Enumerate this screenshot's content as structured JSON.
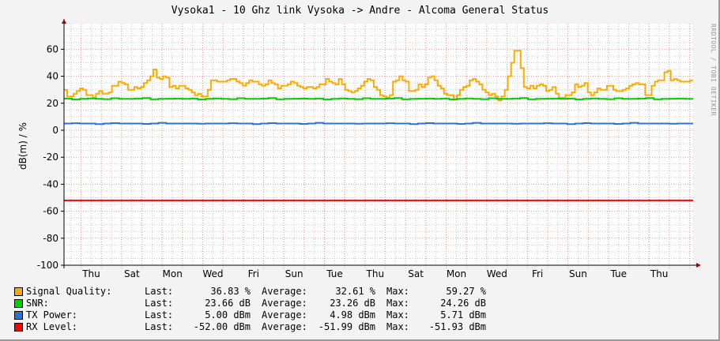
{
  "title": "Vysoka1 - 10 Ghz link Vysoka -> Andre - Alcoma General Status",
  "watermark": "RRDTOOL / TOBI OETIKER",
  "y_axis_label": "dB(m)  /  %",
  "chart_data": {
    "type": "line",
    "title": "Vysoka1 - 10 Ghz link Vysoka -> Andre - Alcoma General Status",
    "xlabel": "",
    "ylabel": "dB(m) / %",
    "ylim": [
      -100,
      79
    ],
    "y_ticks": [
      60,
      40,
      20,
      0,
      -20,
      -40,
      -60,
      -80,
      -100
    ],
    "y_tick_labels": [
      "60",
      "40",
      "20",
      "0",
      "-20",
      "-40",
      "-60",
      "-80",
      "-100"
    ],
    "x_tick_labels": [
      "Thu",
      "Sat",
      "Mon",
      "Wed",
      "Fri",
      "Sun",
      "Tue",
      "Thu",
      "Sat",
      "Mon",
      "Wed",
      "Fri",
      "Sun",
      "Tue",
      "Thu"
    ],
    "grid": true,
    "legend_position": "bottom",
    "series": [
      {
        "name": "Signal Quality",
        "unit": "%",
        "color": "#FFAA00",
        "values": [
          30,
          25,
          25,
          27,
          29,
          31,
          30,
          26,
          26,
          24,
          27,
          29,
          27,
          27,
          28,
          33,
          33,
          36,
          35,
          34,
          30,
          30,
          32,
          31,
          32,
          35,
          37,
          40,
          45,
          39,
          38,
          40,
          39,
          32,
          33,
          31,
          33,
          33,
          31,
          30,
          28,
          26,
          27,
          25,
          25,
          30,
          37,
          37,
          36,
          36,
          36,
          37,
          38,
          38,
          36,
          35,
          33,
          35,
          37,
          36,
          36,
          34,
          33,
          34,
          37,
          35,
          34,
          31,
          33,
          33,
          34,
          36,
          35,
          33,
          32,
          31,
          32,
          32,
          31,
          32,
          34,
          34,
          38,
          36,
          35,
          34,
          38,
          34,
          30,
          29,
          28,
          29,
          31,
          33,
          36,
          38,
          37,
          32,
          30,
          26,
          25,
          24,
          26,
          36,
          37,
          40,
          37,
          36,
          29,
          29,
          30,
          34,
          32,
          34,
          39,
          40,
          37,
          33,
          31,
          27,
          26,
          26,
          23,
          26,
          30,
          32,
          33,
          37,
          38,
          36,
          34,
          30,
          28,
          26,
          27,
          25,
          22,
          25,
          30,
          40,
          50,
          59,
          59,
          46,
          32,
          31,
          33,
          31,
          33,
          34,
          33,
          29,
          30,
          32,
          27,
          24,
          24,
          26,
          26,
          28,
          34,
          32,
          33,
          35,
          28,
          26,
          28,
          31,
          30,
          30,
          33,
          33,
          30,
          29,
          29,
          30,
          31,
          33,
          34,
          35,
          34,
          34,
          26,
          26,
          33,
          36,
          37,
          37,
          43,
          44,
          37,
          38,
          37,
          36,
          36,
          36,
          37
        ]
      },
      {
        "name": "SNR",
        "unit": "dB",
        "color": "#00CC00",
        "values": [
          23.66,
          23.26,
          24.26
        ]
      },
      {
        "name": "TX Power",
        "unit": "dBm",
        "color": "#2774D6",
        "values": [
          5.0,
          4.98,
          5.71
        ]
      },
      {
        "name": "RX Level",
        "unit": "dBm",
        "color": "#FF0000",
        "values": [
          -52.0,
          -51.99,
          -51.93
        ]
      }
    ]
  },
  "legend": [
    {
      "name": "Signal Quality:",
      "color": "#FFAA00",
      "last_label": "Last:",
      "last": "36.83 %",
      "avg_label": "Average:",
      "avg": "32.61 %",
      "max_label": "Max:",
      "max": "59.27 %"
    },
    {
      "name": "SNR:",
      "color": "#00CC00",
      "last_label": "Last:",
      "last": "23.66 dB",
      "avg_label": "Average:",
      "avg": "23.26 dB",
      "max_label": "Max:",
      "max": "24.26 dB"
    },
    {
      "name": "TX Power:",
      "color": "#2774D6",
      "last_label": "Last:",
      "last": "5.00 dBm",
      "avg_label": "Average:",
      "avg": "4.98 dBm",
      "max_label": "Max:",
      "max": "5.71 dBm"
    },
    {
      "name": "RX Level:",
      "color": "#FF0000",
      "last_label": "Last:",
      "last": "-52.00 dBm",
      "avg_label": "Average:",
      "avg": "-51.99 dBm",
      "max_label": "Max:",
      "max": "-51.93 dBm"
    }
  ]
}
